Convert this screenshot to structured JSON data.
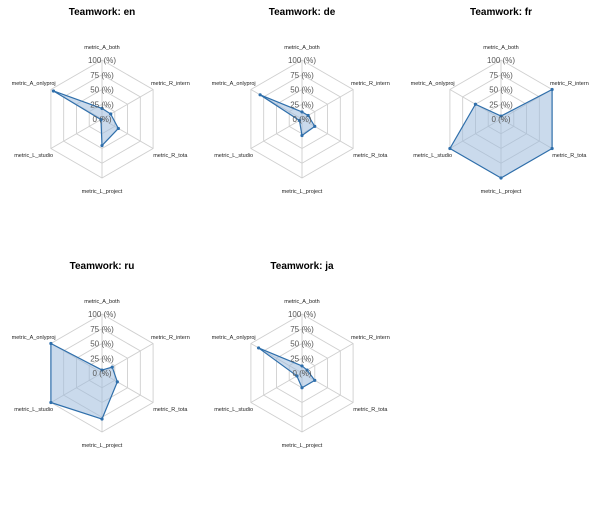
{
  "colors": {
    "grid": "#cfcfcf",
    "series_line": "#2f6fab",
    "series_fill": "#9fbcdc"
  },
  "chart_data": [
    {
      "type": "radar",
      "title": "Teamwork: en",
      "axes": [
        "metric_A_both",
        "metric_R_intern",
        "metric_R_tota",
        "metric_L_project",
        "metric_L_studio",
        "metric_A_onlyproj"
      ],
      "axis_labels": [
        "metric_A_both",
        "metric_R_intern",
        "metric_R_tota",
        "metric_L_project",
        "metric_L_studio",
        "metric_A_onlyproj"
      ],
      "ticks": [
        "0 (%)",
        "25 (%)",
        "50 (%)",
        "75 (%)",
        "100 (%)"
      ],
      "rlim": [
        0,
        100
      ],
      "values": [
        18,
        17,
        32,
        45,
        2,
        95
      ]
    },
    {
      "type": "radar",
      "title": "Teamwork: de",
      "axes": [
        "metric_A_both",
        "metric_R_intern",
        "metric_R_tota",
        "metric_L_project",
        "metric_L_studio",
        "metric_A_onlyproj"
      ],
      "axis_labels": [
        "metric_A_both",
        "metric_R_intern",
        "metric_R_tota",
        "metric_L_project",
        "metric_L_studio",
        "metric_A_onlyproj"
      ],
      "ticks": [
        "0 (%)",
        "25 (%)",
        "50 (%)",
        "75 (%)",
        "100 (%)"
      ],
      "rlim": [
        0,
        100
      ],
      "values": [
        12,
        12,
        25,
        28,
        5,
        82
      ]
    },
    {
      "type": "radar",
      "title": "Teamwork: fr",
      "axes": [
        "metric_A_both",
        "metric_R_intern",
        "metric_R_tota",
        "metric_L_project",
        "metric_L_studio",
        "metric_A_onlyproj"
      ],
      "axis_labels": [
        "metric_A_both",
        "metric_R_intern",
        "metric_R_tota",
        "metric_L_project",
        "metric_L_studio",
        "metric_A_onlyproj"
      ],
      "ticks": [
        "0 (%)",
        "25 (%)",
        "50 (%)",
        "75 (%)",
        "100 (%)"
      ],
      "rlim": [
        0,
        100
      ],
      "values": [
        5,
        100,
        100,
        100,
        100,
        50
      ]
    },
    {
      "type": "radar",
      "title": "Teamwork: ru",
      "axes": [
        "metric_A_both",
        "metric_R_intern",
        "metric_R_tota",
        "metric_L_project",
        "metric_L_studio",
        "metric_A_onlyproj"
      ],
      "axis_labels": [
        "metric_A_both",
        "metric_R_intern",
        "metric_R_tota",
        "metric_L_project",
        "metric_L_studio",
        "metric_A_onlyproj"
      ],
      "ticks": [
        "0 (%)",
        "25 (%)",
        "50 (%)",
        "75 (%)",
        "100 (%)"
      ],
      "rlim": [
        0,
        100
      ],
      "values": [
        5,
        20,
        30,
        78,
        100,
        100
      ]
    },
    {
      "type": "radar",
      "title": "Teamwork: ja",
      "axes": [
        "metric_A_both",
        "metric_R_intern",
        "metric_R_tota",
        "metric_L_project",
        "metric_L_studio",
        "metric_A_onlyproj"
      ],
      "axis_labels": [
        "metric_A_both",
        "metric_R_intern",
        "metric_R_tota",
        "metric_L_project",
        "metric_L_studio",
        "metric_A_onlyproj"
      ],
      "ticks": [
        "0 (%)",
        "25 (%)",
        "50 (%)",
        "75 (%)",
        "100 (%)"
      ],
      "rlim": [
        0,
        100
      ],
      "values": [
        12,
        10,
        25,
        25,
        10,
        85
      ]
    }
  ]
}
